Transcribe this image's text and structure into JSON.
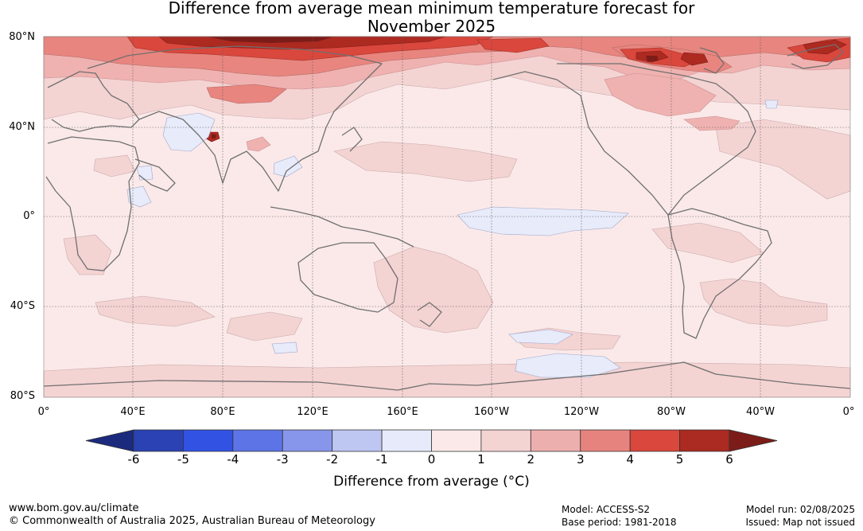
{
  "title_line1": "Difference from average mean minimum temperature forecast for",
  "title_line2": "November 2025",
  "map": {
    "lat_labels": [
      "80°N",
      "40°N",
      "0°",
      "40°S",
      "80°S"
    ],
    "lon_labels": [
      "0°",
      "40°E",
      "80°E",
      "120°E",
      "160°E",
      "160°W",
      "120°W",
      "80°W",
      "40°W",
      "0°"
    ],
    "colors": {
      "ocean_base": "#fbe9e9",
      "band_1_2": "#f4d3d3",
      "band_2_3": "#efb2b0",
      "band_3_4": "#e8857f",
      "band_4_5": "#d9473d",
      "band_5_6": "#ad2a21",
      "band_6_plus": "#7c1c18",
      "band_m1_0": "#e7ebfa",
      "coastline": "#707070",
      "gridline": "#555555"
    }
  },
  "colorbar": {
    "ticks": [
      "-6",
      "-5",
      "-4",
      "-3",
      "-2",
      "-1",
      "0",
      "1",
      "2",
      "3",
      "4",
      "5",
      "6"
    ],
    "colors": [
      "#1b2a7c",
      "#2a42b4",
      "#3252e4",
      "#5c74e6",
      "#8796ea",
      "#bec6f2",
      "#e7eafa",
      "#fbe9e9",
      "#f4d3d3",
      "#edafad",
      "#e7837e",
      "#d9473d",
      "#ab2a21",
      "#7c1c18"
    ],
    "label": "Difference from average ($^\\circ$C)",
    "label_display": "Difference from average (°C)"
  },
  "footer": {
    "website": "www.bom.gov.au/climate",
    "copyright": "© Commonwealth of Australia 2025, Australian Bureau of Meteorology",
    "model": "Model: ACCESS-S2",
    "base_period": "Base period: 1981-2018",
    "model_run": "Model run: 02/08/2025",
    "issued": "Issued: Map not issued"
  }
}
